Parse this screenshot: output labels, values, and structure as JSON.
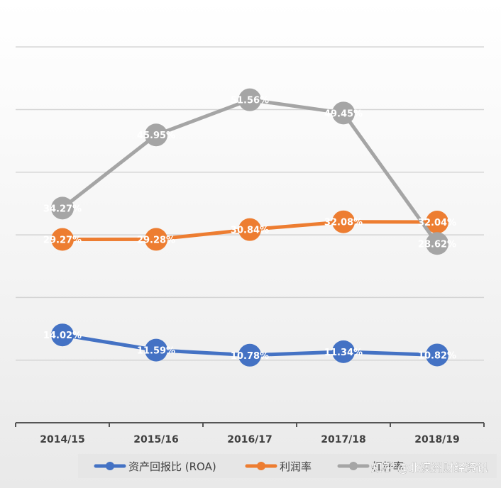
{
  "chart_data": {
    "type": "line",
    "categories": [
      "2014/15",
      "2015/16",
      "2016/17",
      "2017/18",
      "2018/19"
    ],
    "ylim": [
      0,
      65
    ],
    "grid": true,
    "legend_position": "bottom",
    "series": [
      {
        "name": "资产回报比 (ROA)",
        "color": "#4472C4",
        "values": [
          14.02,
          11.59,
          10.78,
          11.34,
          10.82
        ],
        "labels": [
          "14.02%",
          "11.59%",
          "10.78%",
          "11.34%",
          "10.82%"
        ]
      },
      {
        "name": "利润率",
        "color": "#ED7D31",
        "values": [
          29.27,
          29.28,
          30.84,
          32.08,
          32.04
        ],
        "labels": [
          "29.27%",
          "29.28%",
          "30.84%",
          "32.08%",
          "32.04%"
        ]
      },
      {
        "name": "杠杆率",
        "color": "#A5A5A5",
        "values": [
          34.27,
          45.95,
          51.56,
          49.45,
          28.62
        ],
        "labels": [
          "34.27%",
          "45.95%",
          "51.56%",
          "49.45%",
          "28.62%"
        ]
      }
    ]
  },
  "watermark": "知乎 @北澳洲财经资讯"
}
